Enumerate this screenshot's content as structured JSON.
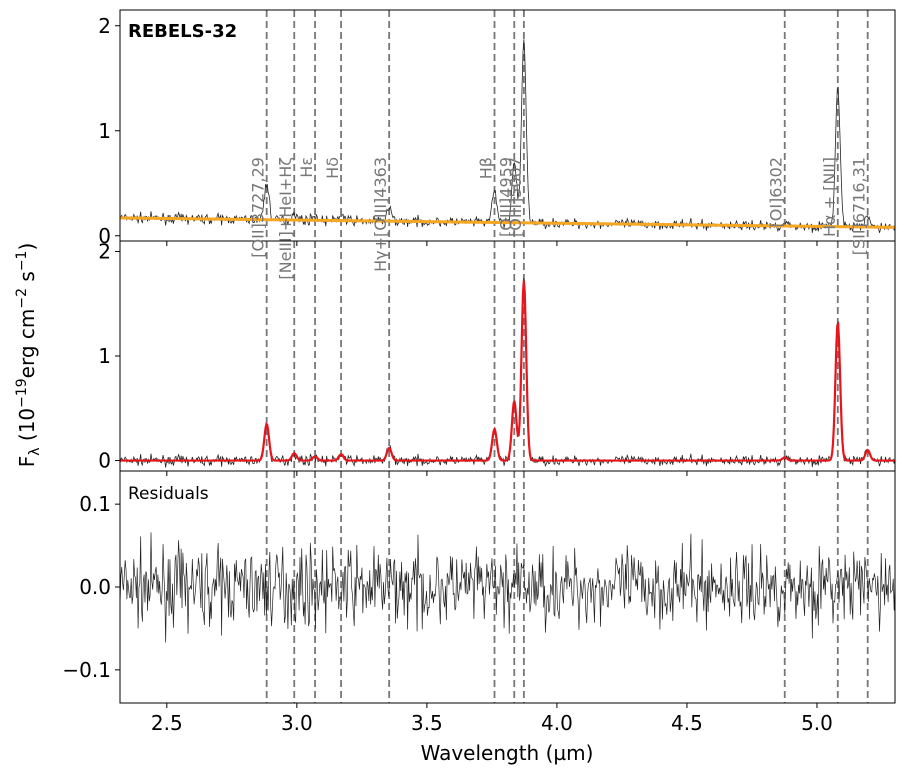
{
  "chart_data": {
    "type": "line",
    "title": "REBELS-32",
    "xlabel": "Wavelength (µm)",
    "ylabel_main": "F",
    "ylabel_sub": "λ",
    "ylabel_rest": " (10",
    "ylabel_exp1": "−19",
    "ylabel_mid": "erg cm",
    "ylabel_exp2": "−2",
    "ylabel_mid2": " s",
    "ylabel_exp3": "−1",
    "ylabel_end": ")",
    "xlim": [
      2.32,
      5.3
    ],
    "x_ticks": [
      2.5,
      3.0,
      3.5,
      4.0,
      4.5,
      5.0
    ],
    "x_tick_labels": [
      "2.5",
      "3.0",
      "3.5",
      "4.0",
      "4.5",
      "5.0"
    ],
    "panels": [
      {
        "id": "top",
        "ylim": [
          -0.05,
          2.15
        ],
        "y_ticks": [
          0,
          1,
          2
        ],
        "y_tick_labels": [
          "0",
          "1",
          "2"
        ],
        "series": [
          {
            "kind": "data",
            "color": "#222222"
          },
          {
            "kind": "continuum",
            "color": "#f5a623",
            "values": {
              "x": [
                2.32,
                5.3
              ],
              "y": [
                0.17,
                0.08
              ]
            }
          }
        ]
      },
      {
        "id": "middle",
        "ylim": [
          -0.1,
          2.1
        ],
        "y_ticks": [
          0,
          1,
          2
        ],
        "y_tick_labels": [
          "0",
          "1",
          "2"
        ],
        "series": [
          {
            "kind": "data",
            "color": "#222222"
          },
          {
            "kind": "model",
            "color": "#e8141b"
          }
        ]
      },
      {
        "id": "bottom",
        "label": "Residuals",
        "ylim": [
          -0.14,
          0.14
        ],
        "y_ticks": [
          -0.1,
          0.0,
          0.1
        ],
        "y_tick_labels": [
          "−0.1",
          "0.0",
          "0.1"
        ],
        "series": [
          {
            "kind": "residuals",
            "color": "#222222"
          }
        ]
      }
    ],
    "emission_lines": [
      {
        "label": "[OII]3727,29",
        "x": 2.884,
        "amp": 0.35
      },
      {
        "label": "[NeIII]+HeI+Hζ",
        "x": 2.99,
        "amp": 0.07
      },
      {
        "label": "Hε",
        "x": 3.07,
        "amp": 0.04
      },
      {
        "label": "Hδ",
        "x": 3.17,
        "amp": 0.06
      },
      {
        "label": "Hγ+[OIII]4363",
        "x": 3.355,
        "amp": 0.12
      },
      {
        "label": "Hβ",
        "x": 3.76,
        "amp": 0.3
      },
      {
        "label": "[OIII]4959",
        "x": 3.836,
        "amp": 0.57
      },
      {
        "label": "[OIII]5007",
        "x": 3.873,
        "amp": 1.72
      },
      {
        "label": "[OI]6302",
        "x": 4.876,
        "amp": 0.03
      },
      {
        "label": "Hα + [NII]",
        "x": 5.08,
        "amp": 1.32
      },
      {
        "label": "[SII]6716,31",
        "x": 5.195,
        "amp": 0.1
      }
    ],
    "grid": false,
    "legend": "none"
  }
}
